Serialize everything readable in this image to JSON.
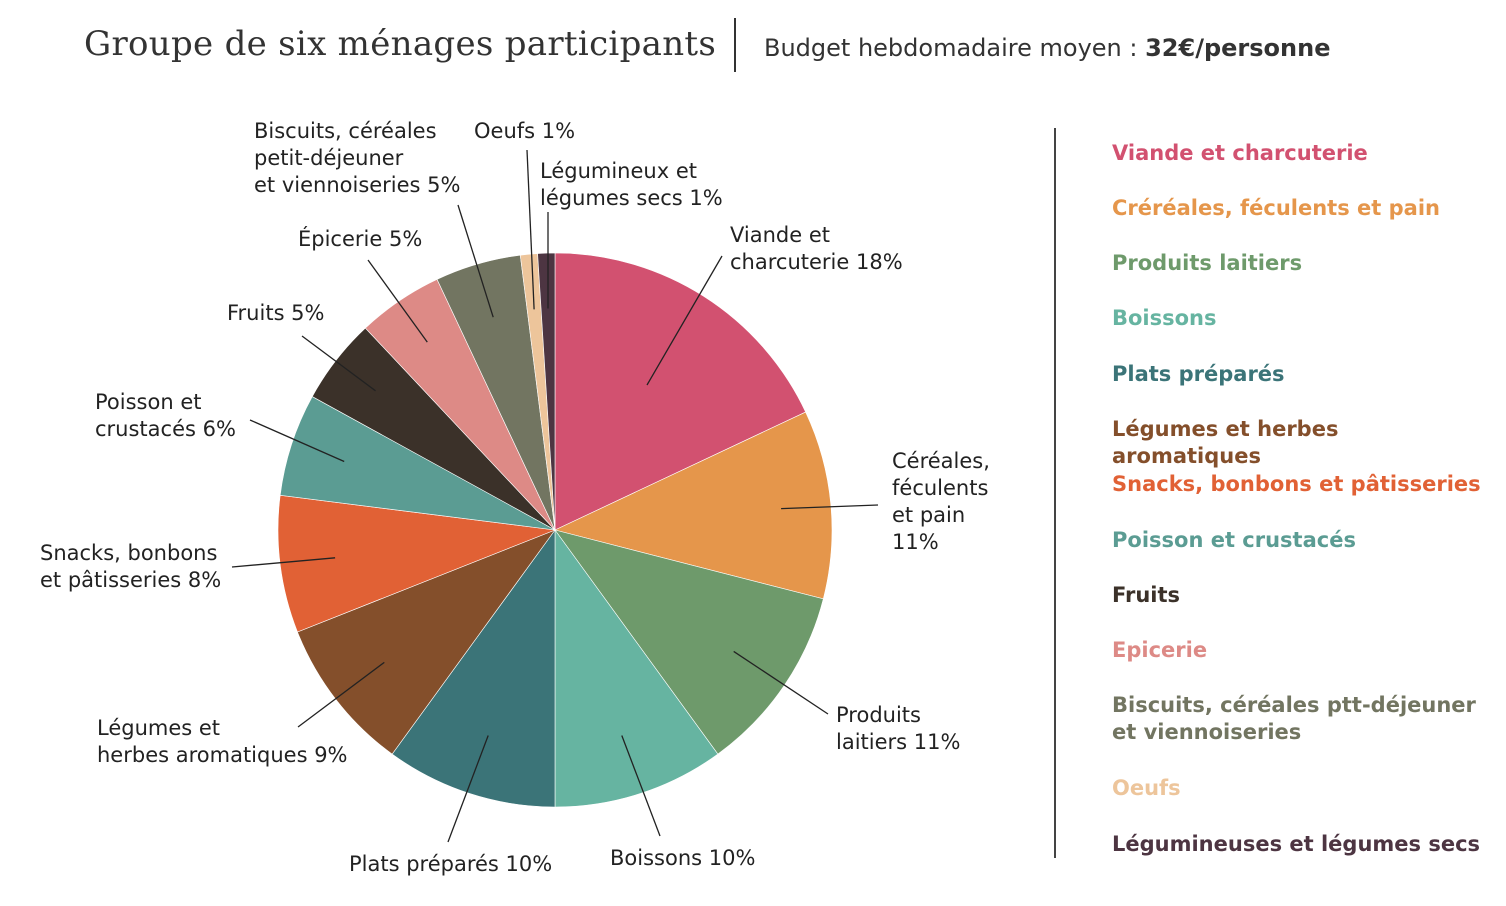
{
  "header": {
    "title": "Groupe de six ménages participants",
    "subtitle_prefix": "Budget hebdomadaire moyen : ",
    "subtitle_value": "32€/personne"
  },
  "chart_data": {
    "type": "pie",
    "title": "Groupe de six ménages participants",
    "subtitle": "Budget hebdomadaire moyen : 32€/personne",
    "start": "top",
    "direction": "clockwise",
    "slices": [
      {
        "key": "viande",
        "label_lines": [
          "Viande et",
          "charcuterie 18%"
        ],
        "value": 18,
        "color": "#d25170"
      },
      {
        "key": "cereales",
        "label_lines": [
          "Céréales,",
          "féculents",
          "et pain",
          "11%"
        ],
        "value": 11,
        "color": "#e5964b"
      },
      {
        "key": "laitiers",
        "label_lines": [
          "Produits",
          "laitiers 11%"
        ],
        "value": 11,
        "color": "#6e9a6b"
      },
      {
        "key": "boissons",
        "label_lines": [
          "Boissons 10%"
        ],
        "value": 10,
        "color": "#66b4a1"
      },
      {
        "key": "plats",
        "label_lines": [
          "Plats préparés 10%"
        ],
        "value": 10,
        "color": "#3b7478"
      },
      {
        "key": "legumes",
        "label_lines": [
          "Légumes et",
          "herbes aromatiques 9%"
        ],
        "value": 9,
        "color": "#844f2b"
      },
      {
        "key": "snacks",
        "label_lines": [
          "Snacks, bonbons",
          "et pâtisseries  8%"
        ],
        "value": 8,
        "color": "#e16135"
      },
      {
        "key": "poisson",
        "label_lines": [
          "Poisson et",
          "crustacés 6%"
        ],
        "value": 6,
        "color": "#5b9c93"
      },
      {
        "key": "fruits",
        "label_lines": [
          "Fruits 5%"
        ],
        "value": 5,
        "color": "#3b3129"
      },
      {
        "key": "epicerie",
        "label_lines": [
          "Épicerie 5%"
        ],
        "value": 5,
        "color": "#dd8a86"
      },
      {
        "key": "biscuits",
        "label_lines": [
          "Biscuits, céréales",
          "petit-déjeuner",
          "et viennoiseries 5%"
        ],
        "value": 5,
        "color": "#727561"
      },
      {
        "key": "oeufs",
        "label_lines": [
          "Oeufs 1%"
        ],
        "value": 1,
        "color": "#edc59b"
      },
      {
        "key": "legumineux",
        "label_lines": [
          "Légumineux et",
          "légumes secs 1%"
        ],
        "value": 1,
        "color": "#4d3542"
      }
    ],
    "legend": {
      "placement": "right",
      "items": [
        {
          "lines": [
            "Viande et charcuterie"
          ],
          "color": "#d25170"
        },
        {
          "lines": [
            "Créréales, féculents et pain"
          ],
          "color": "#e5964b"
        },
        {
          "lines": [
            "Produits laitiers"
          ],
          "color": "#6e9a6b"
        },
        {
          "lines": [
            "Boissons"
          ],
          "color": "#66b4a1"
        },
        {
          "lines": [
            "Plats préparés"
          ],
          "color": "#3b7478"
        },
        {
          "lines": [
            "Légumes et herbes aromatiques"
          ],
          "color": "#844f2b"
        },
        {
          "lines": [
            "Snacks, bonbons et pâtisseries"
          ],
          "color": "#e16135"
        },
        {
          "lines": [
            "Poisson et crustacés"
          ],
          "color": "#5b9c93"
        },
        {
          "lines": [
            "Fruits"
          ],
          "color": "#3b3129"
        },
        {
          "lines": [
            "Epicerie"
          ],
          "color": "#dd8a86"
        },
        {
          "lines": [
            "Biscuits, céréales ptt-déjeuner",
            "et viennoiseries"
          ],
          "color": "#727561"
        },
        {
          "lines": [
            "Oeufs"
          ],
          "color": "#edc59b"
        },
        {
          "lines": [
            "Légumineuses et légumes secs"
          ],
          "color": "#4d3542"
        }
      ]
    }
  }
}
